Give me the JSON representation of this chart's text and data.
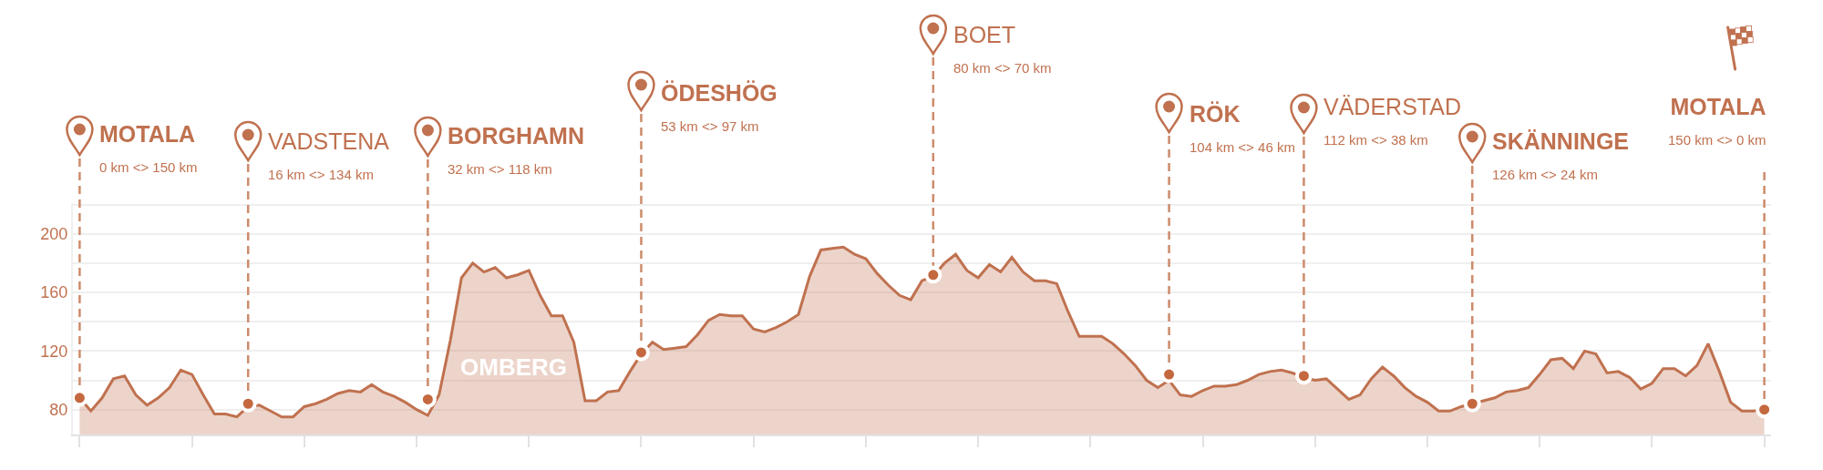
{
  "chart_data": {
    "type": "area",
    "categories": [
      null,
      null,
      null,
      null,
      null,
      null,
      null,
      null,
      null,
      null,
      null,
      null,
      null,
      null,
      null,
      null,
      null,
      null,
      null,
      null,
      null,
      null,
      null,
      null,
      null,
      null,
      null,
      null,
      null,
      null,
      null,
      null,
      null,
      null,
      null,
      null,
      null,
      null,
      null,
      null,
      null,
      null,
      null,
      null,
      null,
      null,
      null,
      null,
      null,
      null,
      null,
      null,
      null,
      null,
      null,
      null,
      null,
      null,
      null,
      null,
      null,
      null,
      null,
      null,
      null,
      null,
      null,
      null,
      null,
      null,
      null,
      null,
      null,
      null,
      null,
      null,
      null,
      null,
      null,
      null,
      null,
      null,
      null,
      null,
      null,
      null,
      null,
      null,
      null,
      null,
      null,
      null,
      null,
      null,
      null,
      null,
      null,
      null,
      null,
      null,
      null,
      null,
      null,
      null,
      null,
      null,
      null,
      null,
      null,
      null,
      null,
      null,
      null,
      null,
      null,
      null,
      null,
      null,
      null,
      null,
      null,
      null,
      null,
      null,
      null,
      null,
      null,
      null,
      null,
      null,
      null,
      null,
      null,
      null,
      null,
      null,
      null,
      null,
      null,
      null,
      null,
      null,
      null,
      null,
      null,
      null,
      null,
      null,
      null,
      null,
      null
    ],
    "series": [
      {
        "color": "#c0714f",
        "values": [
          88,
          79,
          88,
          101,
          103,
          90,
          83,
          88,
          95,
          107,
          104,
          90,
          77,
          77,
          75,
          82,
          83,
          79,
          75,
          75,
          82,
          84,
          87,
          91,
          93,
          92,
          97,
          92,
          89,
          85,
          80,
          76,
          90,
          127,
          170,
          180,
          174,
          177,
          170,
          172,
          175,
          158,
          144,
          144,
          126,
          86,
          86,
          92,
          93,
          106,
          118,
          126,
          121,
          122,
          123,
          131,
          141,
          145,
          144,
          144,
          135,
          133,
          136,
          140,
          145,
          171,
          189,
          190,
          191,
          186,
          183,
          173,
          165,
          158,
          155,
          168,
          171,
          180,
          186,
          175,
          170,
          179,
          174,
          184,
          174,
          168,
          168,
          166,
          147,
          130,
          130,
          130,
          125,
          118,
          110,
          100,
          95,
          100,
          90,
          89,
          93,
          96,
          96,
          97,
          100,
          104,
          106,
          107,
          105,
          102,
          100,
          101,
          94,
          87,
          90,
          101,
          109,
          103,
          95,
          89,
          85,
          79,
          79,
          82,
          84,
          86,
          88,
          92,
          93,
          95,
          104,
          114,
          115,
          108,
          120,
          118,
          105,
          106,
          102,
          94,
          98,
          108,
          108,
          103,
          110,
          125,
          106,
          85,
          79,
          79,
          80
        ]
      },
      {
        "type": "scatter",
        "color": "#c4683f",
        "values": [
          88,
          null,
          null,
          null,
          null,
          null,
          null,
          null,
          null,
          null,
          null,
          null,
          null,
          null,
          null,
          84,
          null,
          null,
          null,
          null,
          null,
          null,
          null,
          null,
          null,
          null,
          null,
          null,
          null,
          null,
          null,
          87,
          null,
          null,
          null,
          null,
          null,
          null,
          null,
          null,
          null,
          null,
          null,
          null,
          null,
          null,
          null,
          null,
          null,
          null,
          119,
          null,
          null,
          null,
          null,
          null,
          null,
          null,
          null,
          null,
          null,
          null,
          null,
          null,
          null,
          null,
          null,
          null,
          null,
          null,
          null,
          null,
          null,
          null,
          null,
          null,
          172,
          null,
          null,
          null,
          null,
          null,
          null,
          null,
          null,
          null,
          null,
          null,
          null,
          null,
          null,
          null,
          null,
          null,
          null,
          null,
          null,
          104,
          null,
          null,
          null,
          null,
          null,
          null,
          null,
          null,
          null,
          null,
          null,
          103,
          null,
          null,
          null,
          null,
          null,
          null,
          null,
          null,
          null,
          null,
          null,
          null,
          null,
          null,
          84,
          null,
          null,
          null,
          null,
          null,
          null,
          null,
          null,
          null,
          null,
          null,
          null,
          null,
          null,
          null,
          null,
          null,
          null,
          null,
          null,
          null,
          null,
          null,
          null,
          null,
          80
        ]
      }
    ],
    "ylim": [
      63,
      221
    ],
    "yticks": [
      80,
      {
        "value": 100,
        "label": null
      },
      120,
      {
        "value": 140,
        "label": null
      },
      160,
      {
        "value": 180,
        "label": null
      },
      200,
      {
        "value": 220,
        "label": null
      }
    ],
    "grid": "y",
    "tick_labels": "y",
    "annotations": [
      "MOTALA\n0 km <> 150 km",
      "VADSTENA\n16 km <> 134 km",
      "BORGHAMN\n32 km <> 118 km",
      "ÖDESHÖG\n53 km <> 97 km",
      "BOET\n80 km <> 70 km",
      "RÖK\n104 km <> 46 km",
      "VÄDERSTAD\n112 km <> 38 km",
      "SKÄNNINGE\n126 km <> 24 km",
      "MOTALA\n150 km <> 0 km",
      "OMBERG"
    ]
  }
}
